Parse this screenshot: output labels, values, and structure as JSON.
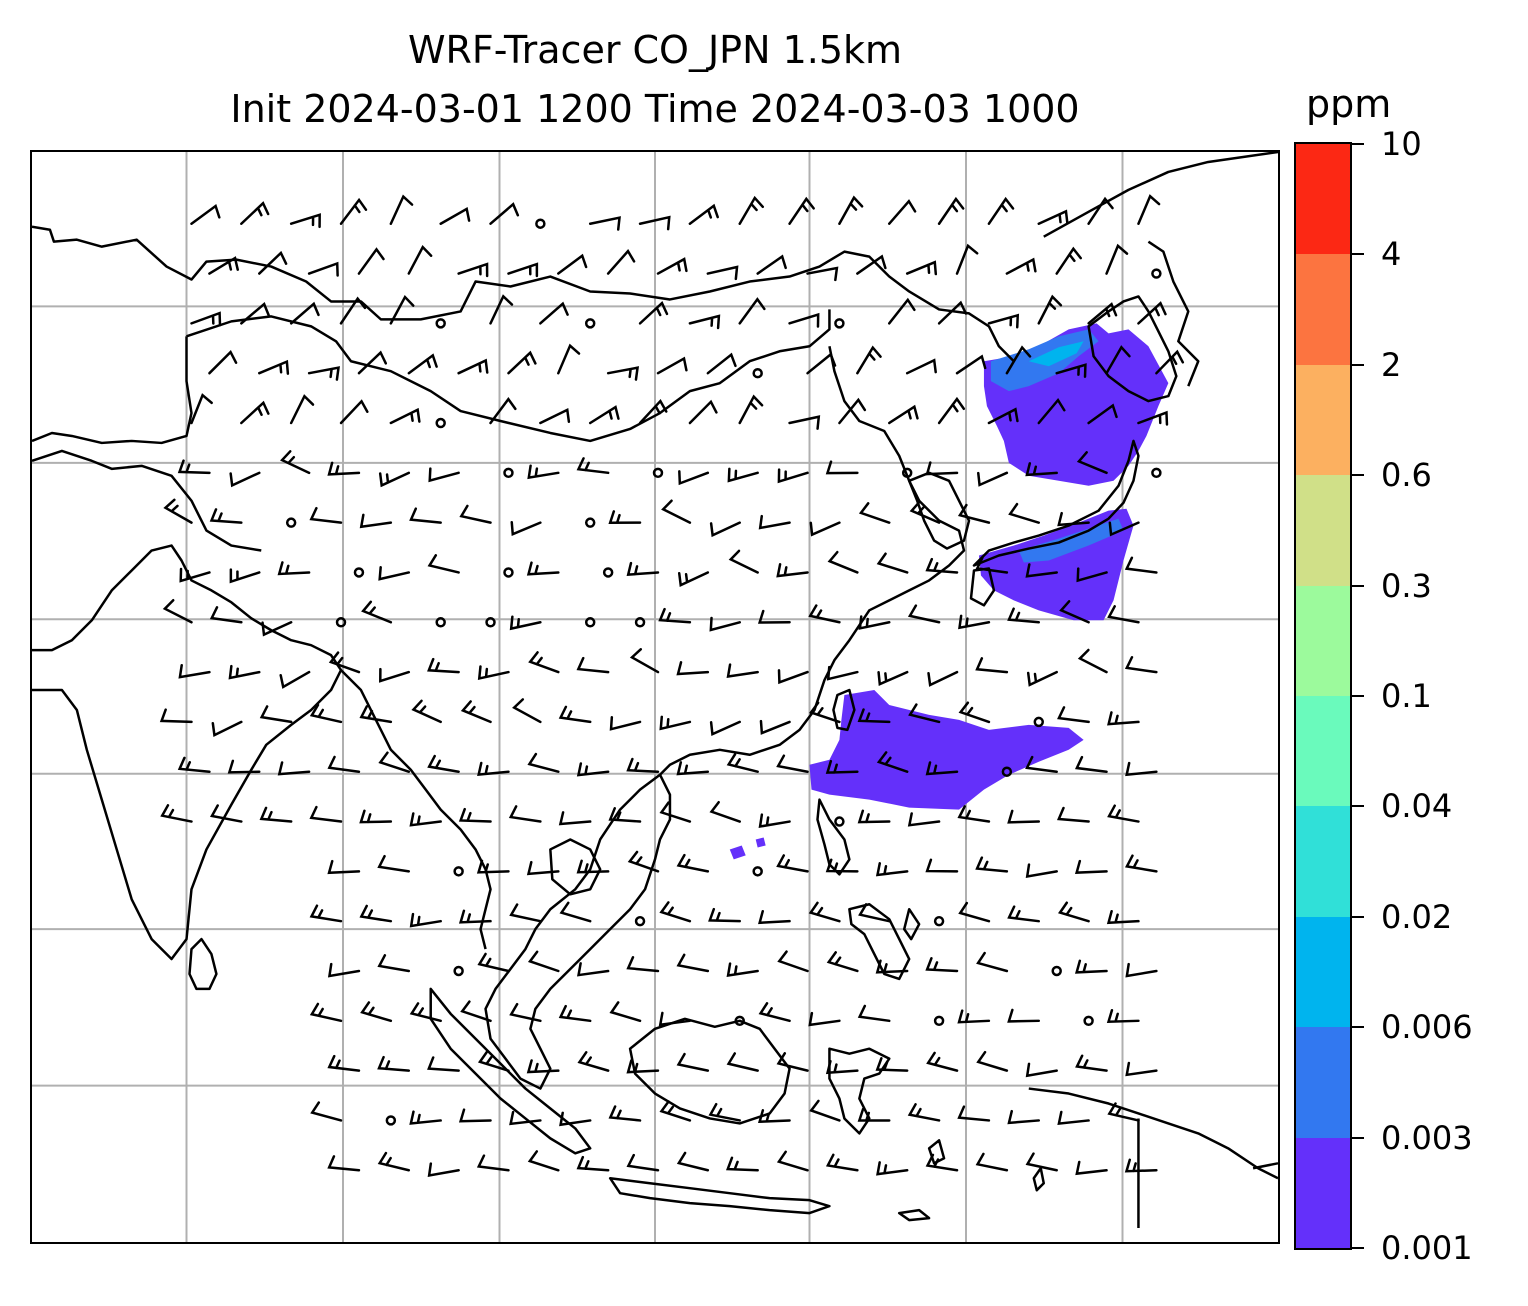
{
  "title": {
    "line1": "WRF-Tracer CO_JPN 1.5km",
    "line2": "Init 2024-03-01 1200 Time 2024-03-03 1000"
  },
  "colorbar": {
    "label": "ppm",
    "ticks": [
      "0.001",
      "0.003",
      "0.006",
      "0.02",
      "0.04",
      "0.1",
      "0.3",
      "0.6",
      "2",
      "4",
      "10"
    ],
    "colors": [
      "#6430fa",
      "#3278f0",
      "#00b4ee",
      "#30e0d8",
      "#6afabc",
      "#9cfa9c",
      "#d0e088",
      "#fcb060",
      "#fc7440",
      "#fc2814"
    ]
  },
  "map": {
    "gridlines": true,
    "coastline_color": "#000000",
    "plume_color_primary": "#6430fa",
    "plume_color_secondary": "#3278f0",
    "plume_color_core": "#00b4ee"
  },
  "wind_barbs": {
    "color": "#000000",
    "calm_symbol": "circle"
  }
}
